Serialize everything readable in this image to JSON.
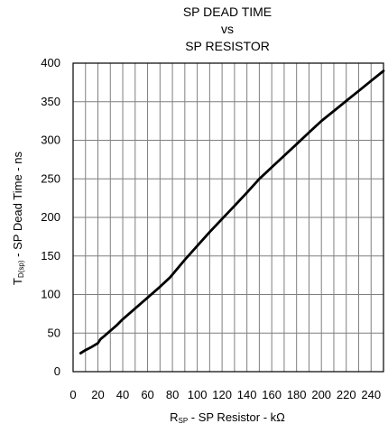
{
  "chart_data": {
    "type": "line",
    "title_lines": [
      "SP DEAD TIME",
      "vs",
      "SP RESISTOR"
    ],
    "xlabel": {
      "main": "R",
      "sub": "SP",
      "rest": " - SP Resistor - kΩ"
    },
    "ylabel": {
      "main": "T",
      "sub": "D(sp)",
      "rest": " - SP Dead Time - ns"
    },
    "xlim": [
      0,
      250
    ],
    "ylim": [
      0,
      400
    ],
    "xticks": [
      0,
      20,
      40,
      60,
      80,
      100,
      120,
      140,
      160,
      180,
      200,
      220,
      240
    ],
    "yticks": [
      0,
      50,
      100,
      150,
      200,
      250,
      300,
      350,
      400
    ],
    "xgrid_step": 10,
    "ygrid_step": 50,
    "grid": true,
    "series": [
      {
        "x": [
          6,
          10,
          15,
          20,
          22,
          25,
          30,
          35,
          40,
          50,
          60,
          70,
          78,
          90,
          100,
          110,
          120,
          130,
          140,
          150,
          160,
          170,
          180,
          190,
          200,
          210,
          220,
          230,
          240,
          250
        ],
        "y": [
          24,
          28,
          32,
          37,
          42,
          46,
          53,
          60,
          68,
          82,
          96,
          110,
          122,
          145,
          163,
          181,
          198,
          215,
          232,
          250,
          265,
          280,
          295,
          310,
          325,
          338,
          351,
          364,
          377,
          390
        ]
      }
    ]
  }
}
